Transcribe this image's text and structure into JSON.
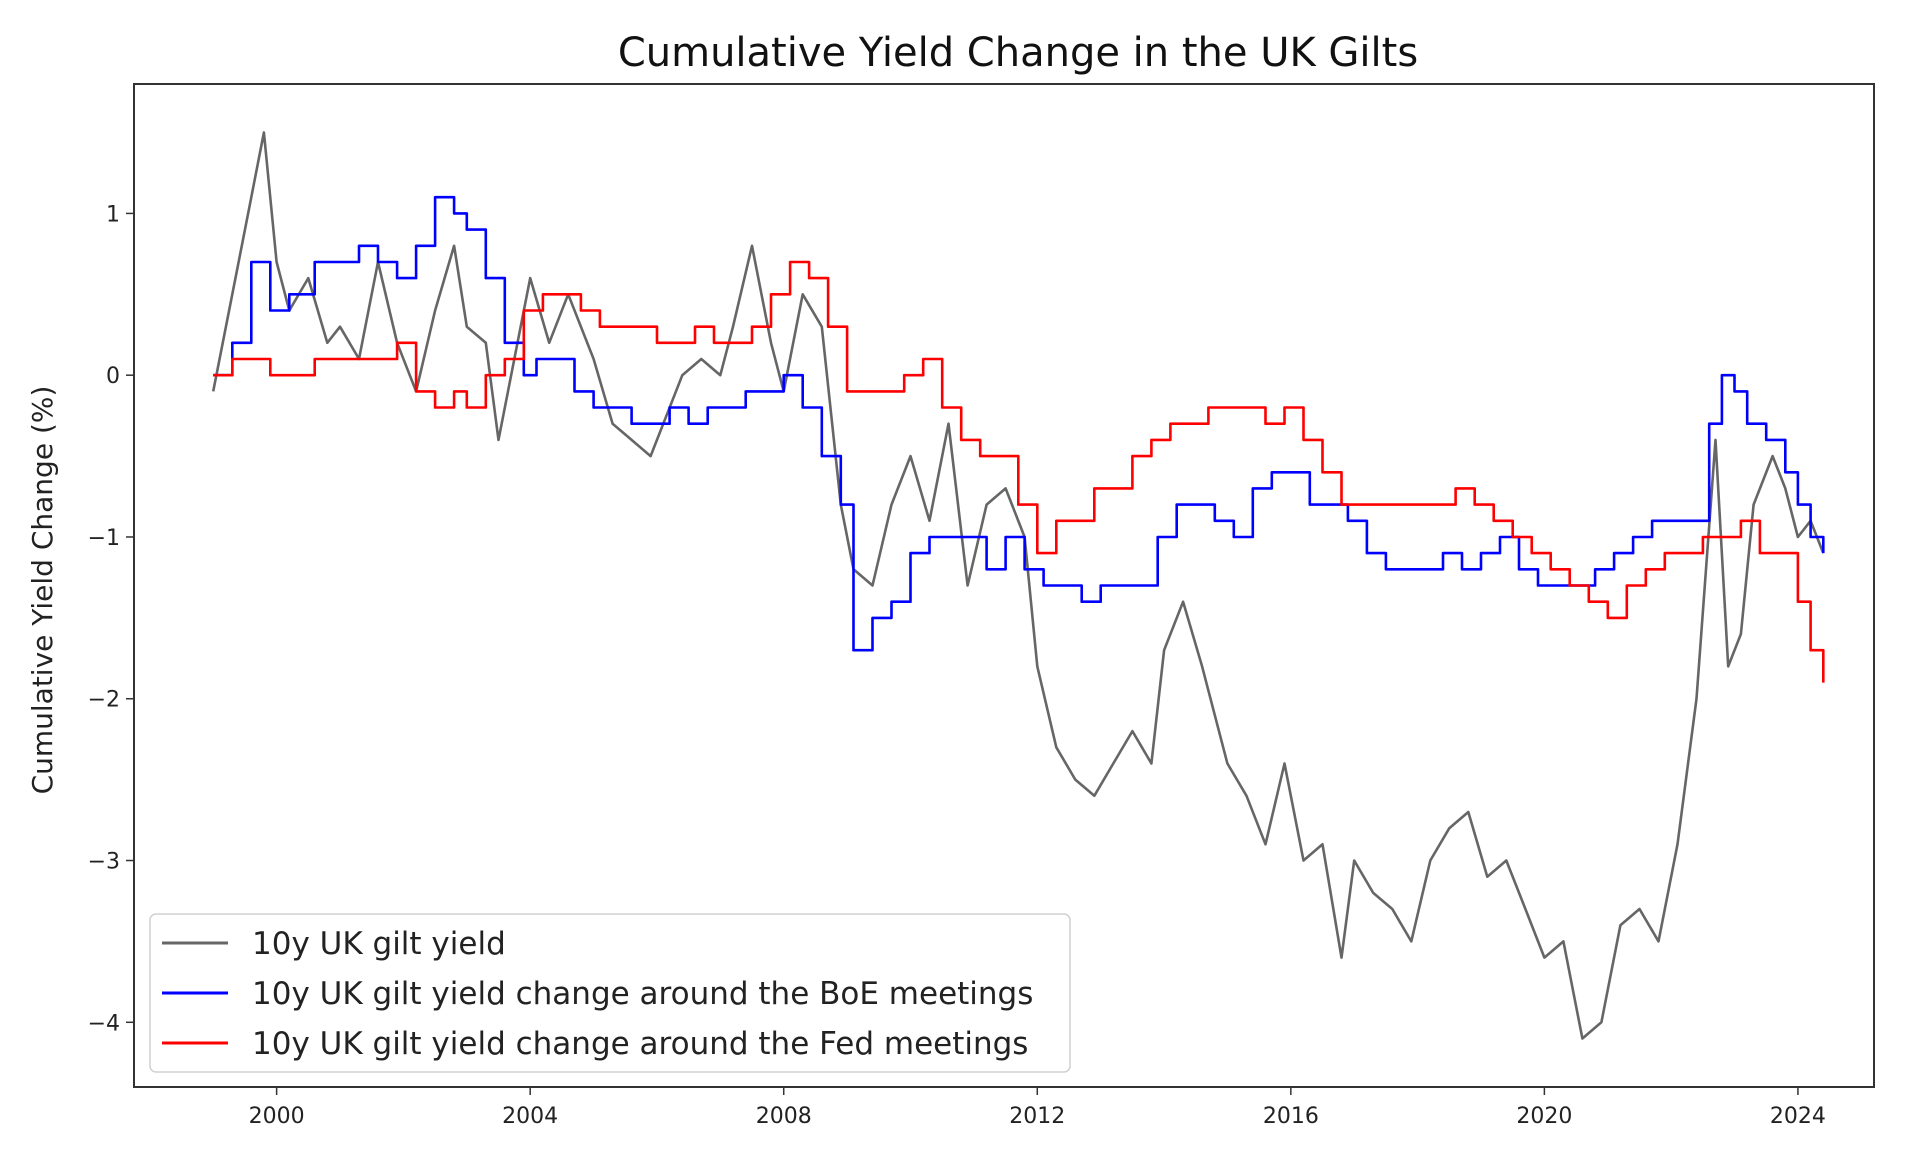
{
  "chart_data": {
    "type": "line",
    "title": "Cumulative Yield Change in the UK Gilts",
    "xlabel": "",
    "ylabel": "Cumulative Yield Change (%)",
    "xlim": [
      1997.75,
      2025.2
    ],
    "ylim": [
      -4.4,
      1.8
    ],
    "x_ticks": [
      2000,
      2004,
      2008,
      2012,
      2016,
      2020,
      2024
    ],
    "x_tick_labels": [
      "2000",
      "2004",
      "2008",
      "2012",
      "2016",
      "2020",
      "2024"
    ],
    "y_ticks": [
      1,
      0,
      -1,
      -2,
      -3,
      -4
    ],
    "y_tick_labels": [
      "1",
      "0",
      "−1",
      "−2",
      "−3",
      "−4"
    ],
    "legend_position": "lower-left",
    "series": [
      {
        "name": "10y UK gilt yield",
        "color": "#666666",
        "x": [
          1999.0,
          1999.3,
          1999.6,
          1999.8,
          2000.0,
          2000.2,
          2000.5,
          2000.8,
          2001.0,
          2001.3,
          2001.6,
          2001.9,
          2002.2,
          2002.5,
          2002.8,
          2003.0,
          2003.3,
          2003.5,
          2003.8,
          2004.0,
          2004.3,
          2004.6,
          2005.0,
          2005.3,
          2005.6,
          2005.9,
          2006.1,
          2006.4,
          2006.7,
          2007.0,
          2007.2,
          2007.5,
          2007.8,
          2008.0,
          2008.3,
          2008.6,
          2008.9,
          2009.1,
          2009.4,
          2009.7,
          2010.0,
          2010.3,
          2010.6,
          2010.9,
          2011.2,
          2011.5,
          2011.8,
          2012.0,
          2012.3,
          2012.6,
          2012.9,
          2013.2,
          2013.5,
          2013.8,
          2014.0,
          2014.3,
          2014.6,
          2015.0,
          2015.3,
          2015.6,
          2015.9,
          2016.2,
          2016.5,
          2016.8,
          2017.0,
          2017.3,
          2017.6,
          2017.9,
          2018.2,
          2018.5,
          2018.8,
          2019.1,
          2019.4,
          2019.7,
          2020.0,
          2020.3,
          2020.6,
          2020.9,
          2021.2,
          2021.5,
          2021.8,
          2022.1,
          2022.4,
          2022.7,
          2022.9,
          2023.1,
          2023.3,
          2023.6,
          2023.8,
          2024.0,
          2024.2,
          2024.4
        ],
        "values": [
          -0.1,
          0.5,
          1.1,
          1.5,
          0.7,
          0.4,
          0.6,
          0.2,
          0.3,
          0.1,
          0.7,
          0.2,
          -0.1,
          0.4,
          0.8,
          0.3,
          0.2,
          -0.4,
          0.2,
          0.6,
          0.2,
          0.5,
          0.1,
          -0.3,
          -0.4,
          -0.5,
          -0.3,
          0.0,
          0.1,
          0.0,
          0.3,
          0.8,
          0.2,
          -0.1,
          0.5,
          0.3,
          -0.8,
          -1.2,
          -1.3,
          -0.8,
          -0.5,
          -0.9,
          -0.3,
          -1.3,
          -0.8,
          -0.7,
          -1.0,
          -1.8,
          -2.3,
          -2.5,
          -2.6,
          -2.4,
          -2.2,
          -2.4,
          -1.7,
          -1.4,
          -1.8,
          -2.4,
          -2.6,
          -2.9,
          -2.4,
          -3.0,
          -2.9,
          -3.6,
          -3.0,
          -3.2,
          -3.3,
          -3.5,
          -3.0,
          -2.8,
          -2.7,
          -3.1,
          -3.0,
          -3.3,
          -3.6,
          -3.5,
          -4.1,
          -4.0,
          -3.4,
          -3.3,
          -3.5,
          -2.9,
          -2.0,
          -0.4,
          -1.8,
          -1.6,
          -0.8,
          -0.5,
          -0.7,
          -1.0,
          -0.9,
          -1.1
        ]
      },
      {
        "name": "10y UK gilt yield change around the BoE meetings",
        "color": "#0000ff",
        "x": [
          1999.0,
          1999.3,
          1999.6,
          1999.9,
          2000.2,
          2000.6,
          2000.9,
          2001.3,
          2001.6,
          2001.9,
          2002.2,
          2002.5,
          2002.8,
          2003.0,
          2003.3,
          2003.6,
          2003.9,
          2004.1,
          2004.4,
          2004.7,
          2005.0,
          2005.3,
          2005.6,
          2005.9,
          2006.2,
          2006.5,
          2006.8,
          2007.1,
          2007.4,
          2007.7,
          2008.0,
          2008.3,
          2008.6,
          2008.9,
          2009.1,
          2009.4,
          2009.7,
          2010.0,
          2010.3,
          2010.6,
          2010.9,
          2011.2,
          2011.5,
          2011.8,
          2012.1,
          2012.4,
          2012.7,
          2013.0,
          2013.3,
          2013.6,
          2013.9,
          2014.2,
          2014.5,
          2014.8,
          2015.1,
          2015.4,
          2015.7,
          2016.0,
          2016.3,
          2016.6,
          2016.9,
          2017.2,
          2017.5,
          2017.8,
          2018.1,
          2018.4,
          2018.7,
          2019.0,
          2019.3,
          2019.6,
          2019.9,
          2020.2,
          2020.5,
          2020.8,
          2021.1,
          2021.4,
          2021.7,
          2022.0,
          2022.3,
          2022.6,
          2022.8,
          2023.0,
          2023.2,
          2023.5,
          2023.8,
          2024.0,
          2024.2,
          2024.4
        ],
        "values": [
          0.0,
          0.2,
          0.7,
          0.4,
          0.5,
          0.7,
          0.7,
          0.8,
          0.7,
          0.6,
          0.8,
          1.1,
          1.0,
          0.9,
          0.6,
          0.2,
          0.0,
          0.1,
          0.1,
          -0.1,
          -0.2,
          -0.2,
          -0.3,
          -0.3,
          -0.2,
          -0.3,
          -0.2,
          -0.2,
          -0.1,
          -0.1,
          0.0,
          -0.2,
          -0.5,
          -0.8,
          -1.7,
          -1.5,
          -1.4,
          -1.1,
          -1.0,
          -1.0,
          -1.0,
          -1.2,
          -1.0,
          -1.2,
          -1.3,
          -1.3,
          -1.4,
          -1.3,
          -1.3,
          -1.3,
          -1.0,
          -0.8,
          -0.8,
          -0.9,
          -1.0,
          -0.7,
          -0.6,
          -0.6,
          -0.8,
          -0.8,
          -0.9,
          -1.1,
          -1.2,
          -1.2,
          -1.2,
          -1.1,
          -1.2,
          -1.1,
          -1.0,
          -1.2,
          -1.3,
          -1.3,
          -1.3,
          -1.2,
          -1.1,
          -1.0,
          -0.9,
          -0.9,
          -0.9,
          -0.3,
          0.0,
          -0.1,
          -0.3,
          -0.4,
          -0.6,
          -0.8,
          -1.0,
          -1.1
        ]
      },
      {
        "name": "10y UK gilt yield change around the Fed meetings",
        "color": "#ff0000",
        "x": [
          1999.0,
          1999.3,
          1999.6,
          1999.9,
          2000.2,
          2000.6,
          2000.9,
          2001.3,
          2001.6,
          2001.9,
          2002.2,
          2002.5,
          2002.8,
          2003.0,
          2003.3,
          2003.6,
          2003.9,
          2004.2,
          2004.5,
          2004.8,
          2005.1,
          2005.4,
          2005.7,
          2006.0,
          2006.3,
          2006.6,
          2006.9,
          2007.2,
          2007.5,
          2007.8,
          2008.1,
          2008.4,
          2008.7,
          2009.0,
          2009.3,
          2009.6,
          2009.9,
          2010.2,
          2010.5,
          2010.8,
          2011.1,
          2011.4,
          2011.7,
          2012.0,
          2012.3,
          2012.6,
          2012.9,
          2013.2,
          2013.5,
          2013.8,
          2014.1,
          2014.4,
          2014.7,
          2015.0,
          2015.3,
          2015.6,
          2015.9,
          2016.2,
          2016.5,
          2016.8,
          2017.1,
          2017.4,
          2017.7,
          2018.0,
          2018.3,
          2018.6,
          2018.9,
          2019.2,
          2019.5,
          2019.8,
          2020.1,
          2020.4,
          2020.7,
          2021.0,
          2021.3,
          2021.6,
          2021.9,
          2022.2,
          2022.5,
          2022.8,
          2023.1,
          2023.4,
          2023.7,
          2024.0,
          2024.2,
          2024.4
        ],
        "values": [
          0.0,
          0.1,
          0.1,
          0.0,
          0.0,
          0.1,
          0.1,
          0.1,
          0.1,
          0.2,
          -0.1,
          -0.2,
          -0.1,
          -0.2,
          0.0,
          0.1,
          0.4,
          0.5,
          0.5,
          0.4,
          0.3,
          0.3,
          0.3,
          0.2,
          0.2,
          0.3,
          0.2,
          0.2,
          0.3,
          0.5,
          0.7,
          0.6,
          0.3,
          -0.1,
          -0.1,
          -0.1,
          0.0,
          0.1,
          -0.2,
          -0.4,
          -0.5,
          -0.5,
          -0.8,
          -1.1,
          -0.9,
          -0.9,
          -0.7,
          -0.7,
          -0.5,
          -0.4,
          -0.3,
          -0.3,
          -0.2,
          -0.2,
          -0.2,
          -0.3,
          -0.2,
          -0.4,
          -0.6,
          -0.8,
          -0.8,
          -0.8,
          -0.8,
          -0.8,
          -0.8,
          -0.7,
          -0.8,
          -0.9,
          -1.0,
          -1.1,
          -1.2,
          -1.3,
          -1.4,
          -1.5,
          -1.3,
          -1.2,
          -1.1,
          -1.1,
          -1.0,
          -1.0,
          -0.9,
          -1.1,
          -1.1,
          -1.4,
          -1.7,
          -1.9
        ]
      }
    ]
  }
}
